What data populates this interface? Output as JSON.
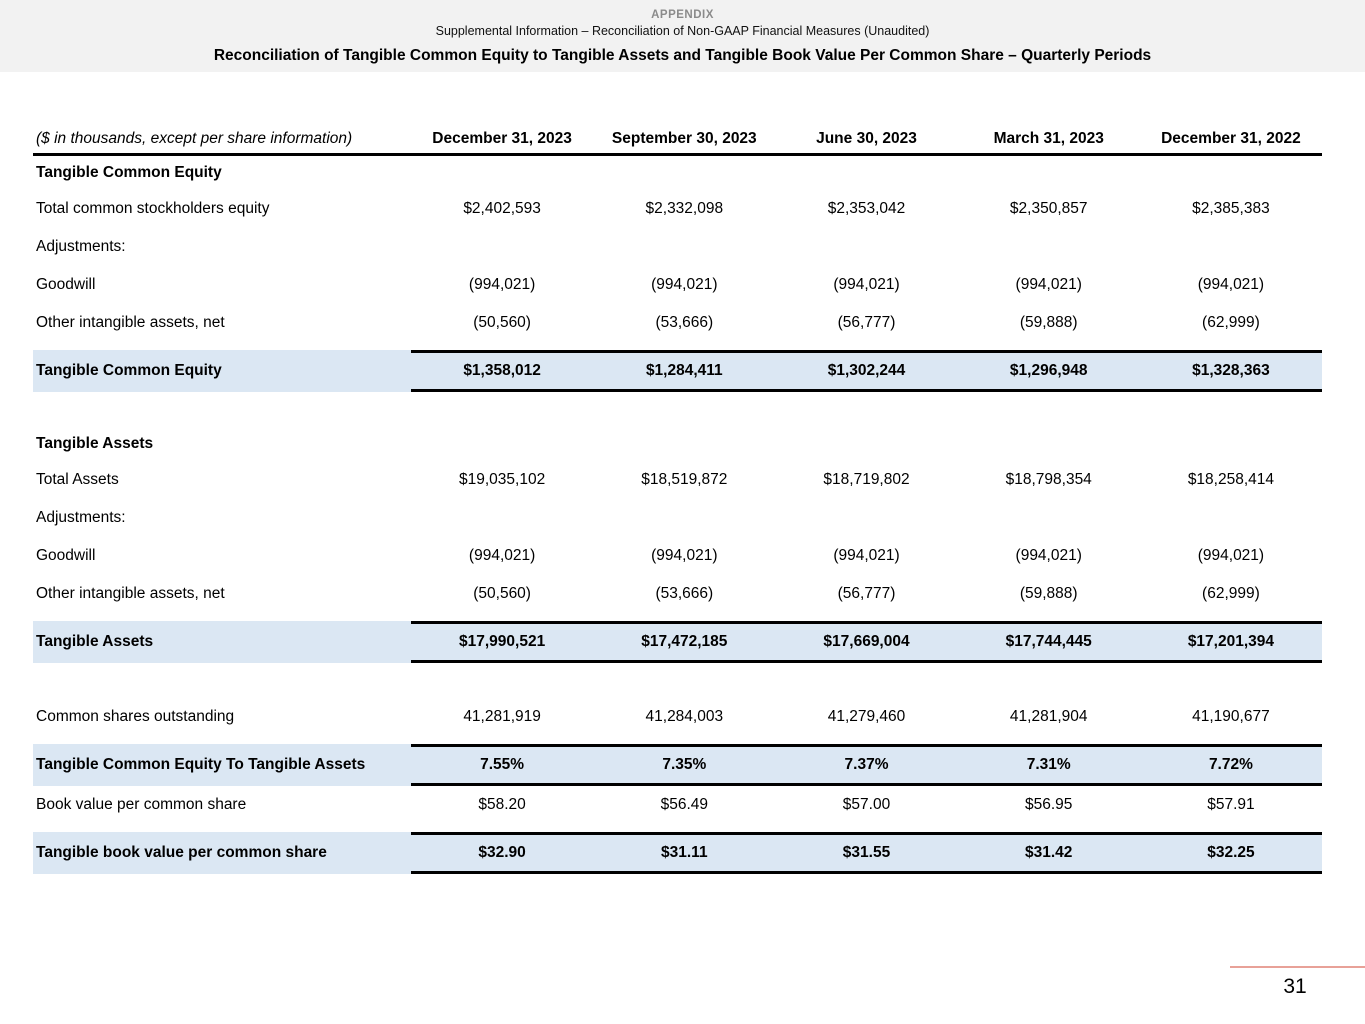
{
  "header": {
    "appendix_label": "APPENDIX",
    "subtitle": "Supplemental Information – Reconciliation of Non-GAAP Financial Measures (Unaudited)",
    "title": "Reconciliation of Tangible Common Equity to Tangible Assets and Tangible Book Value Per Common Share – Quarterly Periods"
  },
  "table": {
    "unit_note": "($ in thousands, except per share information)",
    "columns": [
      "December 31, 2023",
      "September 30, 2023",
      "June 30, 2023",
      "March 31, 2023",
      "December 31, 2022"
    ],
    "rows": [
      {
        "type": "section",
        "label": "Tangible Common Equity",
        "values": []
      },
      {
        "type": "data",
        "label": "Total common stockholders equity",
        "values": [
          "$2,402,593",
          "$2,332,098",
          "$2,353,042",
          "$2,350,857",
          "$2,385,383"
        ]
      },
      {
        "type": "data",
        "label": "Adjustments:",
        "values": []
      },
      {
        "type": "data",
        "label": "Goodwill",
        "values": [
          "(994,021)",
          "(994,021)",
          "(994,021)",
          "(994,021)",
          "(994,021)"
        ]
      },
      {
        "type": "data",
        "label": "Other intangible assets, net",
        "values": [
          "(50,560)",
          "(53,666)",
          "(56,777)",
          "(59,888)",
          "(62,999)"
        ]
      },
      {
        "type": "total",
        "label": "Tangible Common Equity",
        "values": [
          "$1,358,012",
          "$1,284,411",
          "$1,302,244",
          "$1,296,948",
          "$1,328,363"
        ]
      },
      {
        "type": "spacer"
      },
      {
        "type": "section",
        "label": "Tangible Assets",
        "values": []
      },
      {
        "type": "data",
        "label": "Total Assets",
        "values": [
          "$19,035,102",
          "$18,519,872",
          "$18,719,802",
          "$18,798,354",
          "$18,258,414"
        ]
      },
      {
        "type": "data",
        "label": "Adjustments:",
        "values": []
      },
      {
        "type": "data",
        "label": "Goodwill",
        "values": [
          "(994,021)",
          "(994,021)",
          "(994,021)",
          "(994,021)",
          "(994,021)"
        ]
      },
      {
        "type": "data",
        "label": "Other intangible assets, net",
        "values": [
          "(50,560)",
          "(53,666)",
          "(56,777)",
          "(59,888)",
          "(62,999)"
        ]
      },
      {
        "type": "total",
        "label": "Tangible Assets",
        "values": [
          "$17,990,521",
          "$17,472,185",
          "$17,669,004",
          "$17,744,445",
          "$17,201,394"
        ]
      },
      {
        "type": "spacer"
      },
      {
        "type": "data",
        "label": "Common shares outstanding",
        "values": [
          "41,281,919",
          "41,284,003",
          "41,279,460",
          "41,281,904",
          "41,190,677"
        ]
      },
      {
        "type": "total",
        "label": "Tangible Common Equity To Tangible Assets",
        "values": [
          "7.55%",
          "7.35%",
          "7.37%",
          "7.31%",
          "7.72%"
        ]
      },
      {
        "type": "data",
        "label": "Book value per common share",
        "values": [
          "$58.20",
          "$56.49",
          "$57.00",
          "$56.95",
          "$57.91"
        ]
      },
      {
        "type": "total",
        "label": "Tangible book value per common share",
        "values": [
          "$32.90",
          "$31.11",
          "$31.55",
          "$31.42",
          "$32.25"
        ]
      }
    ]
  },
  "footer": {
    "page_number": "31"
  },
  "colors": {
    "highlight_row": "#dbe7f3",
    "header_strip": "#f2f2f2",
    "accent_line": "#e8a198",
    "appendix_text": "#8b8b8b"
  }
}
